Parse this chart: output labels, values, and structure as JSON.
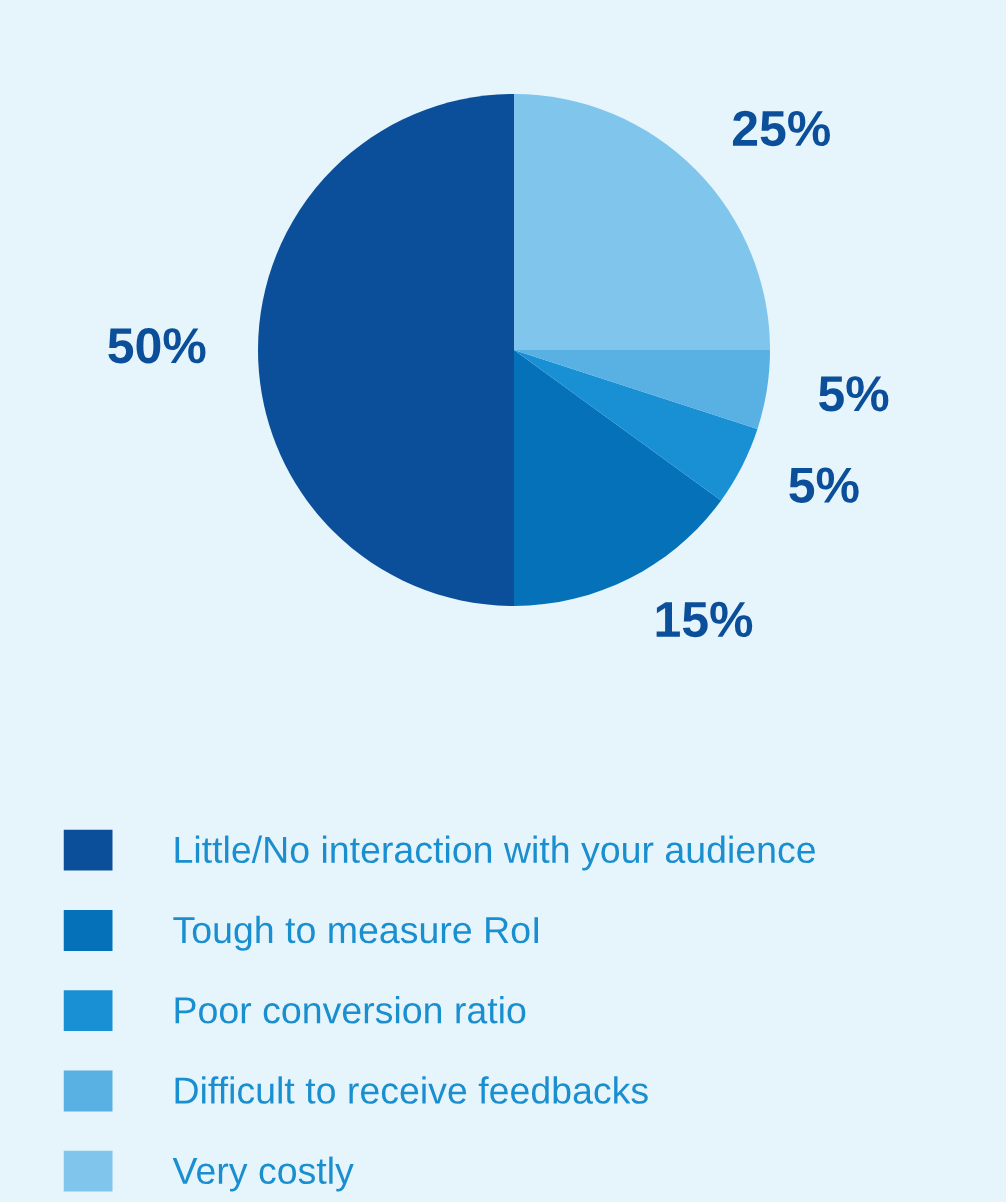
{
  "chart_data": {
    "type": "pie",
    "categories": [
      "Little/No interaction with your audience",
      "Tough to measure RoI",
      "Poor conversion ratio",
      "Difficult to receive feedbacks",
      "Very costly"
    ],
    "values": [
      50,
      15,
      5,
      5,
      25
    ],
    "colors": [
      "#0b4f9a",
      "#0571b9",
      "#1a90d4",
      "#58b0e3",
      "#80c5ec"
    ],
    "value_labels": [
      "50%",
      "15%",
      "5%",
      "5%",
      "25%"
    ],
    "legend": "bottom"
  }
}
